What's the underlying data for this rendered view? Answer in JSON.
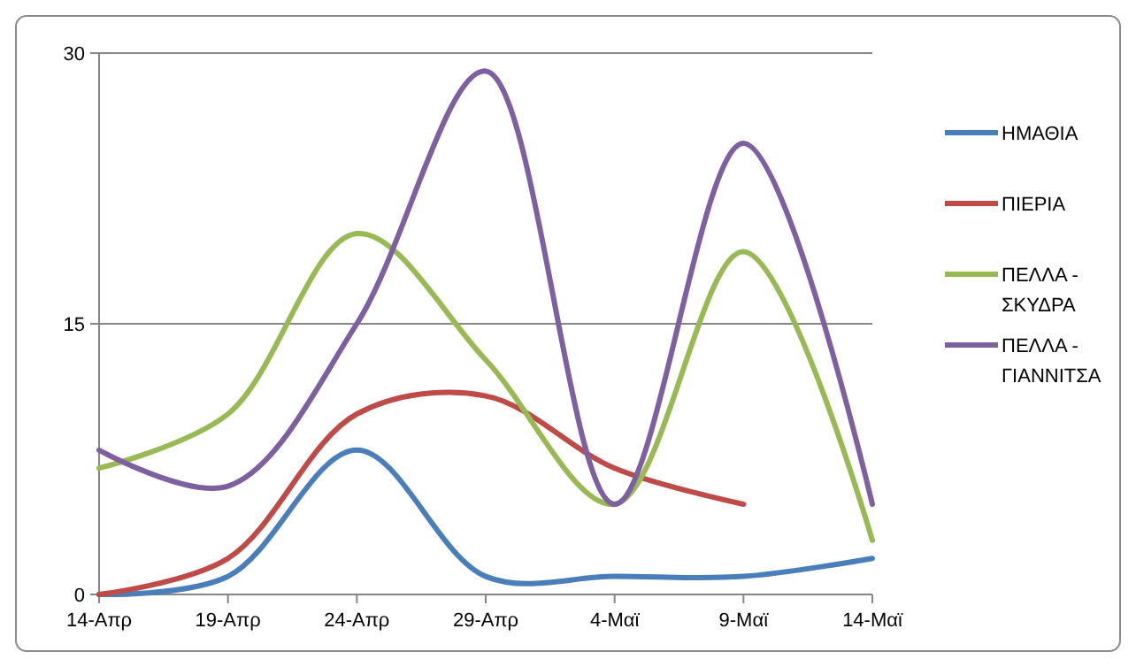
{
  "chart_data": {
    "type": "line",
    "categories": [
      "14-Απρ",
      "19-Απρ",
      "24-Απρ",
      "29-Απρ",
      "4-Μαϊ",
      "9-Μαϊ",
      "14-Μαϊ"
    ],
    "series": [
      {
        "name": "ΗΜΑΘΙΑ",
        "color": "#4a7ebb",
        "values": [
          0,
          1,
          8,
          1,
          1,
          1,
          2
        ]
      },
      {
        "name": "ΠΙΕΡΙΑ",
        "color": "#be4b48",
        "values": [
          0,
          2,
          10,
          11,
          7,
          5,
          null
        ]
      },
      {
        "name": "ΠΕΛΛΑ - ΣΚΥΔΡΑ",
        "color": "#98b954",
        "values": [
          7,
          10,
          20,
          13,
          5,
          19,
          3
        ]
      },
      {
        "name": "ΠΕΛΛΑ - ΓΙΑΝΝΙΤΣΑ",
        "color": "#7d60a0",
        "values": [
          8,
          6,
          15,
          29,
          5,
          25,
          5
        ]
      }
    ],
    "ylim": [
      0,
      30
    ],
    "yticks": [
      0,
      15,
      30
    ],
    "grid": "y",
    "legend": "right",
    "marker": "none",
    "line_style": "solid"
  }
}
